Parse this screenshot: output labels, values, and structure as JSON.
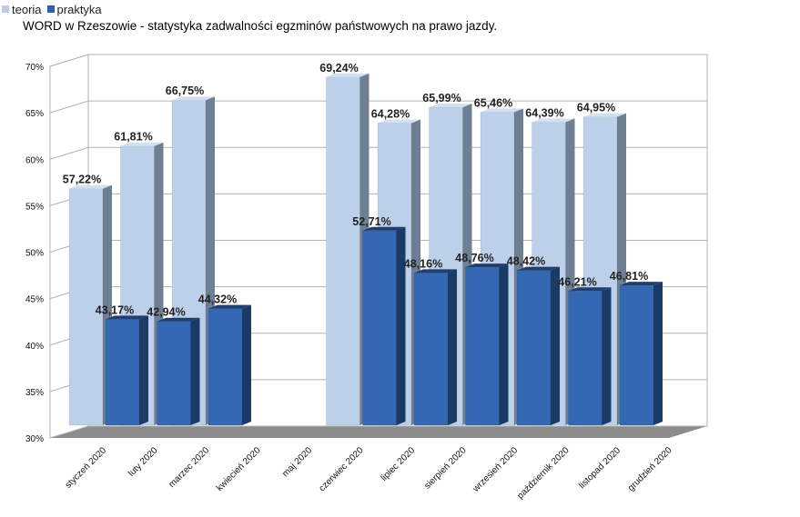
{
  "legend": {
    "items": [
      {
        "label": "teoria",
        "color": "#b9cde5"
      },
      {
        "label": "praktyka",
        "color": "#2f5fa5"
      }
    ]
  },
  "title": "WORD w Rzeszowie - statystyka zadwalności egzminów państwowych na prawo jazdy.",
  "chart_data": {
    "type": "bar",
    "style": "3d-clustered-column",
    "title": "WORD w Rzeszowie - statystyka zadwalności egzminów państwowych na prawo jazdy.",
    "categories": [
      "styczeń 2020",
      "luty 2020",
      "marzec 2020",
      "kwiecień 2020",
      "maj 2020",
      "czerwiec 2020",
      "lipiec 2020",
      "sierpień 2020",
      "wrzesień 2020",
      "październik 2020",
      "listopad 2020",
      "grudzień 2020"
    ],
    "series": [
      {
        "name": "teoria",
        "color": "#b9cde5",
        "values": [
          57.22,
          61.81,
          66.75,
          null,
          null,
          69.24,
          64.28,
          65.99,
          65.46,
          64.39,
          64.95,
          null
        ],
        "labels": [
          "57,22%",
          "61,81%",
          "66,75%",
          "",
          "",
          "69,24%",
          "64,28%",
          "65,99%",
          "65,46%",
          "64,39%",
          "64,95%",
          ""
        ]
      },
      {
        "name": "praktyka",
        "color": "#2f5fa5",
        "values": [
          43.17,
          42.94,
          44.32,
          null,
          null,
          52.71,
          48.16,
          48.76,
          48.42,
          46.21,
          46.81,
          null
        ],
        "labels": [
          "43,17%",
          "42,94%",
          "44,32%",
          "",
          "",
          "52,71%",
          "48,16%",
          "48,76%",
          "48,42%",
          "46,21%",
          "46,81%",
          ""
        ]
      }
    ],
    "yticks": [
      "30%",
      "35%",
      "40%",
      "45%",
      "50%",
      "55%",
      "60%",
      "65%",
      "70%"
    ],
    "ylim": [
      30,
      70
    ],
    "grid": true,
    "legend_position": "top-left"
  }
}
